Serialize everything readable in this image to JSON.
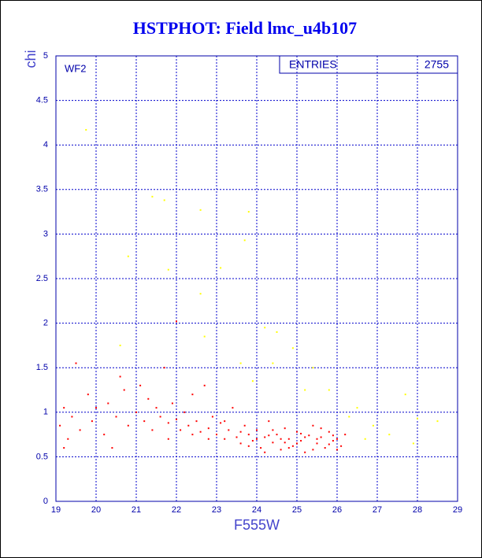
{
  "chart_data": {
    "type": "scatter",
    "title": "HSTPHOT: Field lmc_u4b107",
    "panel_label": "WF2",
    "stats_label": "ENTRIES",
    "entries": 2755,
    "x_label": "F555W",
    "y_label": "chi",
    "xlim": [
      19,
      29
    ],
    "ylim": [
      0,
      5
    ],
    "xticks": [
      19,
      20,
      21,
      22,
      23,
      24,
      25,
      26,
      27,
      28,
      29
    ],
    "yticks": [
      0,
      0.5,
      1,
      1.5,
      2,
      2.5,
      3,
      3.5,
      4,
      4.5,
      5
    ],
    "grid": true,
    "series": [
      {
        "color": "#ff0000",
        "x": [
          19.1,
          19.2,
          19.3,
          19.4,
          19.5,
          19.6,
          19.8,
          19.9,
          20.0,
          20.2,
          20.3,
          20.5,
          20.6,
          20.7,
          20.8,
          21.0,
          21.1,
          21.2,
          21.3,
          21.4,
          21.5,
          21.6,
          21.7,
          21.8,
          21.9,
          22.0,
          22.0,
          22.1,
          22.2,
          22.3,
          22.4,
          22.5,
          22.6,
          22.7,
          22.8,
          22.9,
          23.0,
          23.1,
          23.2,
          23.3,
          23.4,
          23.5,
          23.6,
          23.7,
          23.8,
          23.9,
          24.0,
          24.1,
          24.2,
          24.3,
          24.4,
          24.5,
          24.6,
          24.7,
          24.8,
          24.9,
          25.0,
          25.1,
          25.2,
          25.3,
          25.4,
          25.5,
          25.6,
          25.7,
          25.8,
          25.9,
          26.0,
          26.1,
          26.2,
          23.2,
          23.6,
          24.0,
          24.2,
          24.4,
          24.6,
          24.8,
          25.0,
          25.2,
          25.4,
          25.6,
          25.8,
          26.0,
          24.3,
          24.7,
          25.1,
          25.5,
          25.9,
          23.8,
          22.8,
          22.4,
          21.8,
          20.4,
          19.2
        ],
        "y": [
          0.85,
          1.05,
          0.7,
          0.95,
          1.55,
          0.8,
          1.2,
          0.9,
          1.05,
          0.75,
          1.1,
          0.95,
          1.4,
          1.25,
          0.85,
          1.0,
          1.3,
          0.9,
          1.15,
          0.8,
          1.05,
          0.95,
          1.5,
          0.88,
          1.1,
          2.02,
          0.92,
          0.8,
          1.0,
          0.85,
          1.2,
          0.9,
          0.78,
          1.3,
          0.82,
          0.95,
          0.75,
          0.88,
          0.7,
          0.8,
          1.05,
          0.72,
          0.65,
          0.85,
          0.75,
          0.68,
          0.8,
          0.6,
          0.72,
          0.9,
          0.66,
          0.75,
          0.58,
          0.82,
          0.7,
          0.62,
          0.78,
          0.68,
          0.55,
          0.74,
          0.85,
          0.65,
          0.72,
          0.6,
          0.78,
          0.68,
          0.7,
          0.62,
          0.75,
          0.9,
          0.78,
          0.7,
          0.55,
          0.8,
          0.7,
          0.6,
          0.65,
          0.72,
          0.58,
          0.82,
          0.64,
          0.58,
          0.74,
          0.66,
          0.76,
          0.7,
          0.74,
          0.62,
          0.7,
          0.75,
          0.7,
          0.6,
          0.6
        ]
      },
      {
        "color": "#ffff00",
        "x": [
          19.75,
          21.4,
          21.7,
          22.6,
          20.8,
          21.8,
          22.6,
          23.7,
          23.8,
          23.1,
          24.2,
          24.5,
          22.7,
          20.6,
          23.9,
          25.4,
          25.8,
          26.5,
          26.9,
          27.3,
          27.7,
          28.0,
          28.5,
          26.3,
          25.2,
          23.6,
          24.9,
          24.4,
          26.7,
          27.9
        ],
        "y": [
          4.17,
          3.42,
          3.38,
          3.27,
          2.75,
          2.6,
          2.33,
          2.93,
          3.25,
          2.62,
          1.95,
          1.9,
          1.85,
          1.75,
          1.35,
          1.5,
          1.25,
          1.05,
          0.85,
          0.75,
          1.2,
          0.93,
          0.9,
          0.95,
          1.25,
          1.55,
          1.72,
          1.55,
          0.7,
          0.65
        ]
      }
    ]
  }
}
